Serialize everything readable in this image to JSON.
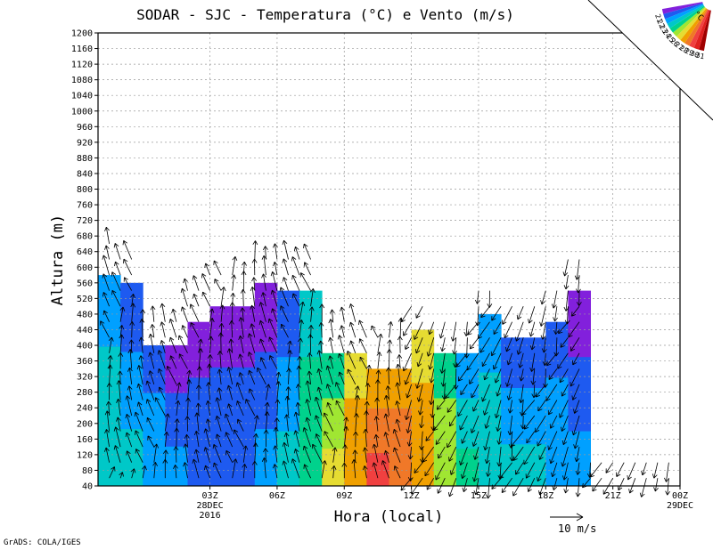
{
  "chart_data": {
    "type": "heatmap",
    "title": "SODAR - SJC - Temperatura (°C) e Vento (m/s)",
    "xlabel": "Hora (local)",
    "ylabel": "Altura (m)",
    "credit": "GrADS: COLA/IGES",
    "ylim": [
      40,
      1200
    ],
    "yticks": [
      40,
      80,
      120,
      160,
      200,
      240,
      280,
      320,
      360,
      400,
      440,
      480,
      520,
      560,
      600,
      640,
      680,
      720,
      760,
      800,
      840,
      880,
      920,
      960,
      1000,
      1040,
      1080,
      1120,
      1160,
      1200
    ],
    "xlim_hours": [
      -2.0,
      24.0
    ],
    "xticks": [
      {
        "hour": 3,
        "label": "03Z",
        "sub1": "28DEC",
        "sub2": "2016"
      },
      {
        "hour": 6,
        "label": "06Z"
      },
      {
        "hour": 9,
        "label": "09Z"
      },
      {
        "hour": 12,
        "label": "12Z"
      },
      {
        "hour": 15,
        "label": "15Z"
      },
      {
        "hour": 18,
        "label": "18Z"
      },
      {
        "hour": 21,
        "label": "21Z"
      },
      {
        "hour": 24,
        "label": "00Z",
        "sub1": "29DEC"
      }
    ],
    "grid": true,
    "colorbar": {
      "unit": "°C",
      "levels": [
        31,
        30,
        29,
        28,
        27,
        26,
        25,
        24,
        23,
        22,
        21
      ],
      "colors": [
        "#a00000",
        "#e02020",
        "#f04040",
        "#f07828",
        "#f0a000",
        "#e6dc32",
        "#a0e632",
        "#00d28c",
        "#00c8c8",
        "#00a0ff",
        "#1e5af0",
        "#8220dc"
      ]
    },
    "temperature_blocks": [
      {
        "hour_start": -2.0,
        "hour_end": -1.0,
        "top": 580,
        "value": 23.0
      },
      {
        "hour_start": -1.0,
        "hour_end": 0.0,
        "top": 560,
        "value": 22.5
      },
      {
        "hour_start": 0.0,
        "hour_end": 1.0,
        "top": 400,
        "value": 22.0
      },
      {
        "hour_start": 1.0,
        "hour_end": 2.0,
        "top": 400,
        "value": 21.5
      },
      {
        "hour_start": 2.0,
        "hour_end": 3.0,
        "top": 460,
        "value": 21.0
      },
      {
        "hour_start": 3.0,
        "hour_end": 4.0,
        "top": 500,
        "value": 21.0
      },
      {
        "hour_start": 4.0,
        "hour_end": 5.0,
        "top": 500,
        "value": 21.0
      },
      {
        "hour_start": 5.0,
        "hour_end": 6.0,
        "top": 560,
        "value": 21.5
      },
      {
        "hour_start": 6.0,
        "hour_end": 7.0,
        "top": 540,
        "value": 22.5
      },
      {
        "hour_start": 7.0,
        "hour_end": 8.0,
        "top": 540,
        "value": 24.0
      },
      {
        "hour_start": 8.0,
        "hour_end": 9.0,
        "top": 380,
        "value": 25.5
      },
      {
        "hour_start": 9.0,
        "hour_end": 10.0,
        "top": 380,
        "value": 27.0
      },
      {
        "hour_start": 10.0,
        "hour_end": 11.0,
        "top": 340,
        "value": 28.5
      },
      {
        "hour_start": 11.0,
        "hour_end": 12.0,
        "top": 340,
        "value": 28.0
      },
      {
        "hour_start": 12.0,
        "hour_end": 13.0,
        "top": 440,
        "value": 27.0
      },
      {
        "hour_start": 13.0,
        "hour_end": 14.0,
        "top": 380,
        "value": 25.0
      },
      {
        "hour_start": 14.0,
        "hour_end": 15.0,
        "top": 380,
        "value": 23.5
      },
      {
        "hour_start": 15.0,
        "hour_end": 16.0,
        "top": 480,
        "value": 23.0
      },
      {
        "hour_start": 16.0,
        "hour_end": 17.0,
        "top": 420,
        "value": 22.5
      },
      {
        "hour_start": 17.0,
        "hour_end": 18.0,
        "top": 420,
        "value": 22.5
      },
      {
        "hour_start": 18.0,
        "hour_end": 19.0,
        "top": 460,
        "value": 22.0
      },
      {
        "hour_start": 19.0,
        "hour_end": 20.0,
        "top": 540,
        "value": 21.5
      }
    ],
    "wind_reference": {
      "label": "10 m/s",
      "speed": 10
    },
    "wind_barbs": {
      "heights": [
        60,
        100,
        140,
        180,
        220,
        260,
        300,
        340,
        380,
        420,
        460,
        500,
        540,
        580,
        620,
        660
      ],
      "time_step_hours": 0.5
    }
  }
}
